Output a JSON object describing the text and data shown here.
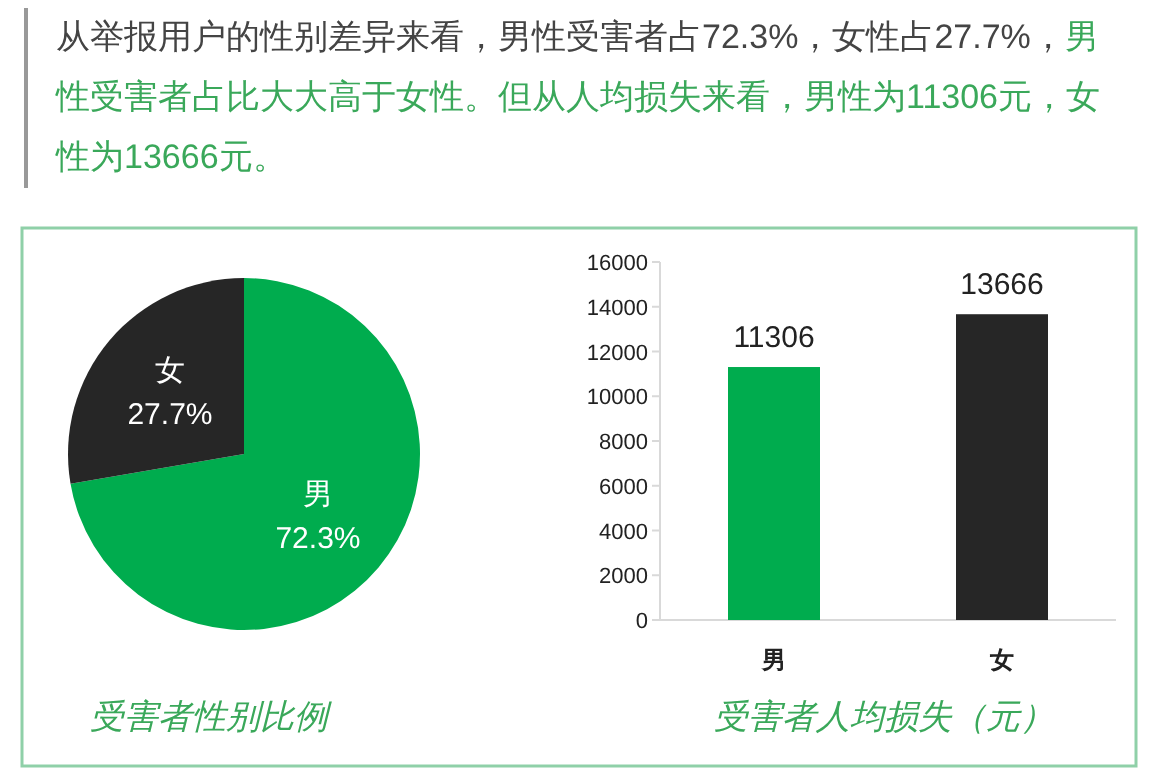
{
  "chart_data": [
    {
      "type": "pie",
      "title": "受害者性别比例",
      "annotations": [
        "从举报用户的性别差异来看，男性受害者占72.3%，女性占27.7%，",
        "男性受害者占比大大高于女性。但从人均损失来看，男性为11306元，女性为13666元。"
      ],
      "categories": [
        "男",
        "女"
      ],
      "values": [
        72.3,
        27.7
      ],
      "colors": [
        "#00ac4e",
        "#262626"
      ],
      "value_labels": [
        "72.3%",
        "27.7%"
      ]
    },
    {
      "type": "bar",
      "title": "受害者人均损失（元）",
      "categories": [
        "男",
        "女"
      ],
      "values": [
        11306,
        13666
      ],
      "colors": [
        "#00ac4e",
        "#262626"
      ],
      "ylim": [
        0,
        16000
      ],
      "yticks": [
        0,
        2000,
        4000,
        6000,
        8000,
        10000,
        12000,
        14000,
        16000
      ],
      "data_labels": true
    }
  ]
}
